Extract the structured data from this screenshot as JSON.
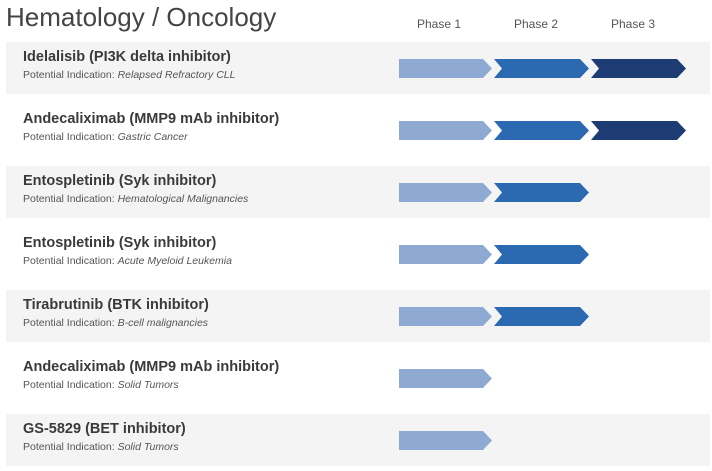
{
  "chart_data": {
    "type": "table",
    "title": "Hematology / Oncology",
    "phases": [
      "Phase 1",
      "Phase 2",
      "Phase 3"
    ],
    "indication_prefix": "Potential Indication:",
    "colors": {
      "phase1": "#8eaad3",
      "phase2": "#2b69b0",
      "phase3": "#1d3c73"
    },
    "rows": [
      {
        "name": "Idelalisib (PI3K delta inhibitor)",
        "indication": "Relapsed Refractory CLL",
        "phase": 3
      },
      {
        "name": "Andecaliximab (MMP9 mAb inhibitor)",
        "indication": "Gastric Cancer",
        "phase": 3
      },
      {
        "name": "Entospletinib (Syk inhibitor)",
        "indication": "Hematological Malignancies",
        "phase": 2
      },
      {
        "name": "Entospletinib (Syk inhibitor)",
        "indication": "Acute Myeloid Leukemia",
        "phase": 2
      },
      {
        "name": "Tirabrutinib (BTK inhibitor)",
        "indication": "B-cell malignancies",
        "phase": 2
      },
      {
        "name": "Andecaliximab (MMP9 mAb inhibitor)",
        "indication": "Solid Tumors",
        "phase": 1
      },
      {
        "name": "GS-5829 (BET inhibitor)",
        "indication": "Solid Tumors",
        "phase": 1
      }
    ]
  }
}
